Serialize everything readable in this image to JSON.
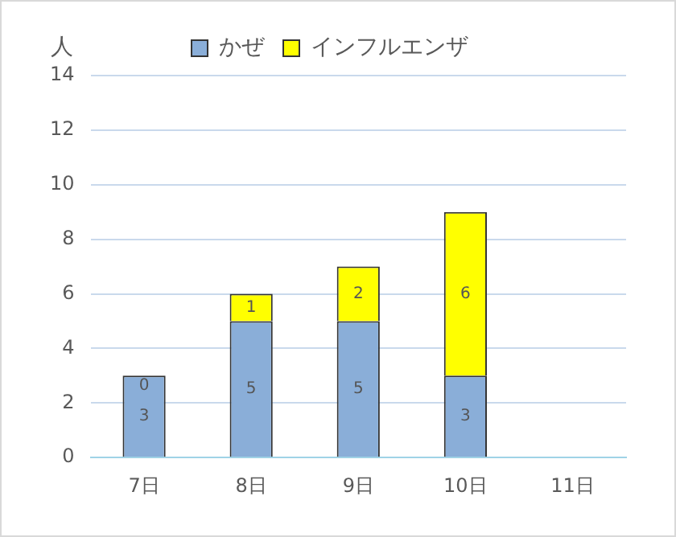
{
  "chart_data": {
    "type": "bar",
    "stacked": true,
    "ylabel": "人",
    "categories": [
      "7日",
      "8日",
      "9日",
      "10日",
      "11日"
    ],
    "series": [
      {
        "name": "かぜ",
        "color": "#8aaed8",
        "values": [
          3,
          5,
          5,
          3,
          null
        ]
      },
      {
        "name": "インフルエンザ",
        "color": "#ffff00",
        "values": [
          0,
          1,
          2,
          6,
          null
        ]
      }
    ],
    "ylim": [
      0,
      14
    ],
    "yticks": [
      0,
      2,
      4,
      6,
      8,
      10,
      12,
      14
    ],
    "grid": "y",
    "legend": "top left",
    "data_labels": true
  }
}
